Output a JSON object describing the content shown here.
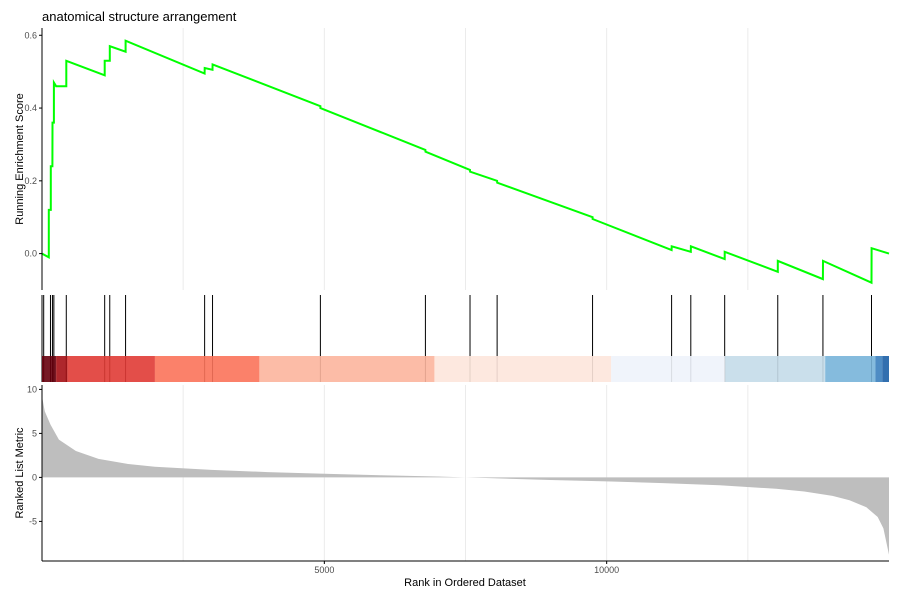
{
  "chart_data": {
    "type": "line",
    "title": "anatomical structure arrangement",
    "xlabel": "Rank in Ordered Dataset",
    "x_range": [
      0,
      15000
    ],
    "x_ticks": [
      5000,
      10000
    ],
    "grid": "vertical",
    "colors": {
      "es_line": "#00ff00",
      "metric_fill": "#bebebe",
      "hit_line": "#000000",
      "axis": "#000000",
      "grid": "#ebebeb"
    },
    "enrichment": {
      "ylabel": "Running Enrichment Score",
      "ylim": [
        -0.1,
        0.62
      ],
      "y_ticks": [
        0.0,
        0.2,
        0.4,
        0.6
      ],
      "y_tick_labels": [
        "0.0",
        "0.2",
        "0.4",
        "0.6"
      ],
      "series": [
        {
          "x": [
            0,
            120,
            121,
            155,
            156,
            185,
            186,
            210,
            211,
            250,
            251,
            430,
            431,
            1110,
            1111,
            1200,
            1201,
            1480,
            1481,
            2880,
            2881,
            3020,
            3021,
            4930,
            4931,
            6790,
            6791,
            7580,
            7581,
            8060,
            8061,
            9750,
            9751,
            11150,
            11151,
            11490,
            11491,
            12090,
            12091,
            13030,
            13031,
            13830,
            13831,
            14690,
            14691,
            15000
          ],
          "y": [
            0.0,
            -0.01,
            0.12,
            0.12,
            0.24,
            0.24,
            0.36,
            0.36,
            0.47,
            0.46,
            0.46,
            0.46,
            0.53,
            0.49,
            0.53,
            0.53,
            0.57,
            0.555,
            0.585,
            0.495,
            0.51,
            0.505,
            0.52,
            0.405,
            0.4,
            0.285,
            0.28,
            0.23,
            0.225,
            0.2,
            0.195,
            0.1,
            0.095,
            0.01,
            0.02,
            0.005,
            0.02,
            -0.015,
            0.005,
            -0.05,
            -0.02,
            -0.07,
            -0.02,
            -0.08,
            0.015,
            0.0
          ]
        }
      ]
    },
    "hits": [
      30,
      150,
      185,
      210,
      430,
      1110,
      1200,
      1480,
      2880,
      3020,
      4930,
      6790,
      7580,
      8060,
      9750,
      11150,
      11490,
      12090,
      13030,
      13830,
      14690
    ],
    "color_bar": [
      {
        "from": 0,
        "to": 250,
        "color": "#67000d"
      },
      {
        "from": 250,
        "to": 450,
        "color": "#a50f15"
      },
      {
        "from": 450,
        "to": 2000,
        "color": "#e03b35"
      },
      {
        "from": 2000,
        "to": 3850,
        "color": "#fb735a"
      },
      {
        "from": 3850,
        "to": 6950,
        "color": "#fcb59d"
      },
      {
        "from": 6950,
        "to": 10080,
        "color": "#fde5dc"
      },
      {
        "from": 10080,
        "to": 12100,
        "color": "#eef3fb"
      },
      {
        "from": 12100,
        "to": 13870,
        "color": "#c4dbe9"
      },
      {
        "from": 13870,
        "to": 14760,
        "color": "#78b4d9"
      },
      {
        "from": 14760,
        "to": 14880,
        "color": "#3b7fbe"
      },
      {
        "from": 14880,
        "to": 15000,
        "color": "#1c5fa6"
      }
    ],
    "ranked_metric": {
      "ylabel": "Ranked List Metric",
      "ylim": [
        -9.5,
        10.5
      ],
      "y_ticks": [
        -5,
        0,
        5,
        10
      ],
      "y_tick_labels": [
        "-5",
        "0",
        "5",
        "10"
      ],
      "x": [
        0,
        50,
        150,
        300,
        600,
        1000,
        1500,
        2000,
        3000,
        4000,
        5000,
        6000,
        7000,
        7500,
        8000,
        9000,
        10000,
        11000,
        12000,
        13000,
        13500,
        14000,
        14300,
        14600,
        14800,
        14900,
        15000
      ],
      "y": [
        9.2,
        7.5,
        6.0,
        4.3,
        3.0,
        2.1,
        1.55,
        1.2,
        0.85,
        0.6,
        0.42,
        0.25,
        0.1,
        0.0,
        -0.1,
        -0.3,
        -0.45,
        -0.65,
        -0.9,
        -1.3,
        -1.6,
        -2.1,
        -2.6,
        -3.4,
        -4.5,
        -5.8,
        -8.8
      ]
    }
  }
}
